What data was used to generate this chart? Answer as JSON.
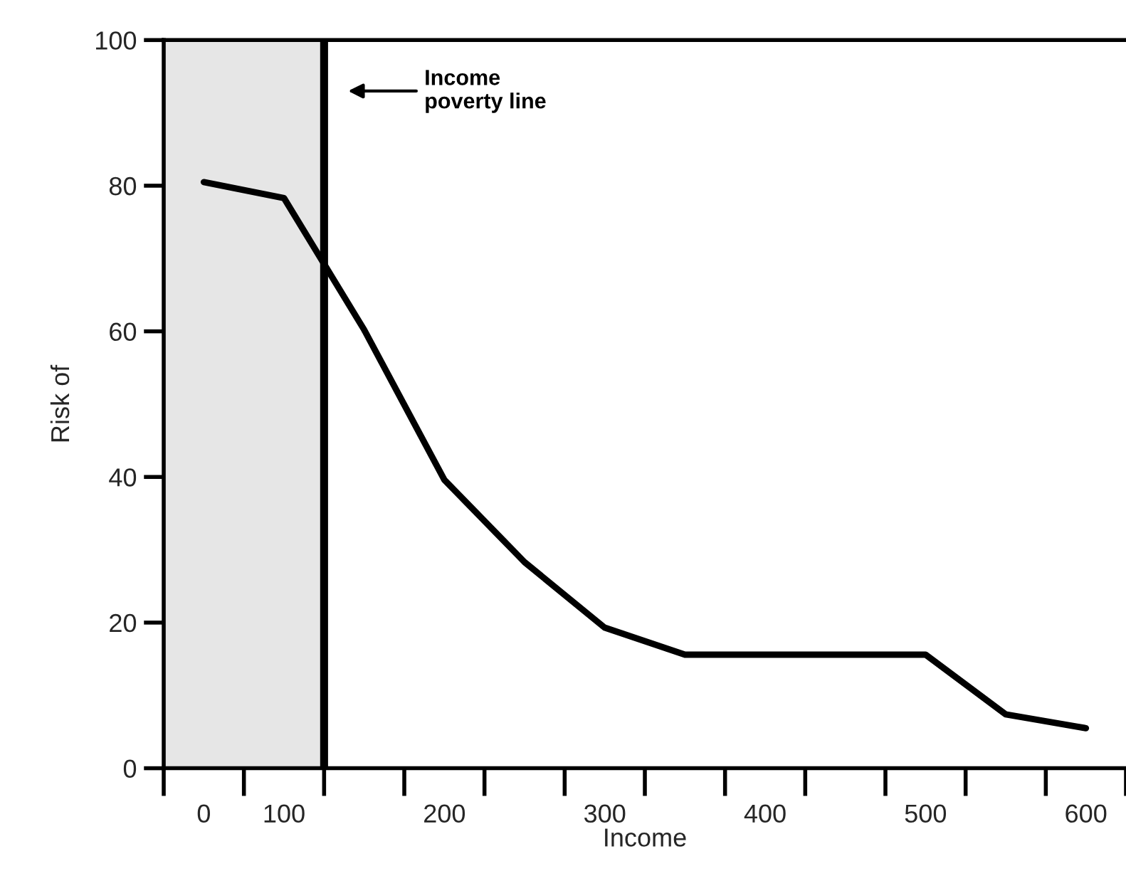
{
  "chart_data": {
    "type": "line",
    "xlabel": "Income",
    "ylabel": "Risk of",
    "categories": [
      "0",
      "100",
      null,
      "200",
      null,
      "300",
      null,
      "400",
      null,
      "500",
      null,
      "600"
    ],
    "series": [
      {
        "color": "#000000",
        "values": [
          80.5,
          78.3,
          60.2,
          39.6,
          28.3,
          19.3,
          15.6,
          15.6,
          15.6,
          15.6,
          7.4,
          5.5
        ]
      }
    ],
    "ylim": [
      0,
      100
    ],
    "yticks": [
      0,
      20,
      40,
      60,
      80,
      100
    ],
    "annotations": [
      "Income\npoverty line"
    ],
    "grid": false,
    "legend": false,
    "marker": "none",
    "line_style": "solid"
  }
}
